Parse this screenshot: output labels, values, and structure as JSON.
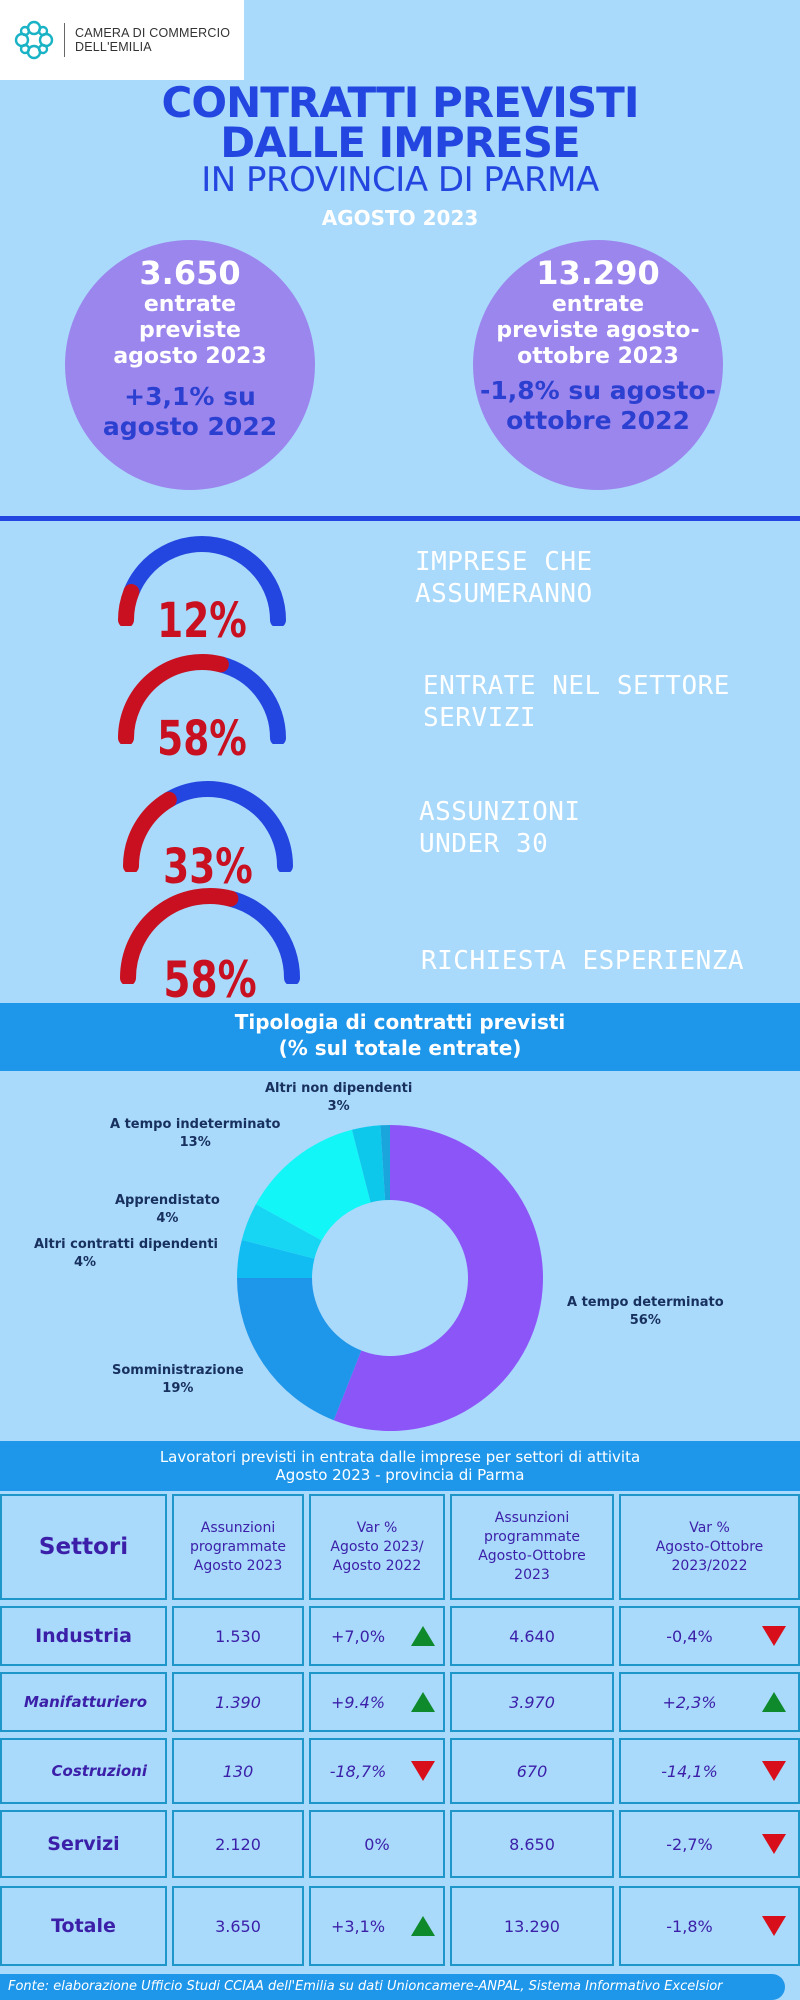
{
  "logo": {
    "line1": "CAMERA DI COMMERCIO",
    "line2": "DELL'EMILIA"
  },
  "header": {
    "title_line1": "CONTRATTI PREVISTI",
    "title_line2": "DALLE IMPRESE",
    "subtitle": "IN PROVINCIA DI PARMA",
    "period": "AGOSTO 2023"
  },
  "bubbles": [
    {
      "number": "3.650",
      "lines": [
        "entrate",
        "previste",
        "agosto 2023"
      ],
      "variation": [
        "+3,1% su",
        "agosto 2022"
      ]
    },
    {
      "number": "13.290",
      "lines": [
        "entrate",
        "previste agosto-",
        "ottobre 2023"
      ],
      "variation": [
        "-1,8% su agosto-",
        "ottobre 2022"
      ]
    }
  ],
  "indicators": [
    {
      "percent": 12,
      "label": "12%",
      "text": [
        "IMPRESE CHE",
        "ASSUMERANNO"
      ]
    },
    {
      "percent": 58,
      "label": "58%",
      "text": [
        "ENTRATE NEL SETTORE",
        "SERVIZI"
      ]
    },
    {
      "percent": 33,
      "label": "33%",
      "text": [
        "ASSUNZIONI",
        "UNDER 30"
      ]
    },
    {
      "percent": 58,
      "label": "58%",
      "text": [
        "RICHIESTA ESPERIENZA"
      ]
    }
  ],
  "colors": {
    "gauge_fill": "#c81020",
    "gauge_rest": "#2446e0"
  },
  "chart_data": {
    "type": "pie",
    "title": "Tipologia di contratti previsti",
    "subtitle": "(% sul totale entrate)",
    "donut": true,
    "slices": [
      {
        "label": "A tempo determinato",
        "value": 56,
        "value_label": "56%",
        "color": "#8c55f8"
      },
      {
        "label": "Somministrazione",
        "value": 19,
        "value_label": "19%",
        "color": "#1e96ea"
      },
      {
        "label": "Altri contratti dipendenti",
        "value": 4,
        "value_label": "4%",
        "color": "#10bcf2"
      },
      {
        "label": "Apprendistato",
        "value": 4,
        "value_label": "4%",
        "color": "#16d6f3"
      },
      {
        "label": "A tempo indeterminato",
        "value": 13,
        "value_label": "13%",
        "color": "#12f6f8"
      },
      {
        "label": "Altri non dipendenti",
        "value": 3,
        "value_label": "3%",
        "color": "#0ec8ec"
      },
      {
        "label": "",
        "value": 1,
        "value_label": "",
        "color": "#1aa6dc"
      }
    ]
  },
  "table": {
    "title_line1": "Lavoratori previsti in entrata dalle imprese per settori di attivita",
    "title_line2": "Agosto 2023 - provincia di Parma",
    "headers": [
      [
        "Settori"
      ],
      [
        "Assunzioni",
        "programmate",
        "Agosto 2023"
      ],
      [
        "Var %",
        "Agosto 2023/",
        "Agosto 2022"
      ],
      [
        "Assunzioni",
        "programmate",
        "Agosto-Ottobre",
        "2023"
      ],
      [
        "Var %",
        "Agosto-Ottobre",
        "2023/2022"
      ]
    ],
    "rows": [
      {
        "sector": "Industria",
        "italic": false,
        "aug": "1.530",
        "var1": "+7,0%",
        "dir1": "up",
        "augoct": "4.640",
        "var2": "-0,4%",
        "dir2": "down"
      },
      {
        "sector": "Manifatturiero",
        "italic": true,
        "aug": "1.390",
        "var1": "+9.4%",
        "dir1": "up",
        "augoct": "3.970",
        "var2": "+2,3%",
        "dir2": "up"
      },
      {
        "sector": "Costruzioni",
        "italic": true,
        "aug": "130",
        "var1": "-18,7%",
        "dir1": "down",
        "augoct": "670",
        "var2": "-14,1%",
        "dir2": "down"
      },
      {
        "sector": "Servizi",
        "italic": false,
        "aug": "2.120",
        "var1": "0%",
        "dir1": "",
        "augoct": "8.650",
        "var2": "-2,7%",
        "dir2": "down"
      },
      {
        "sector": "Totale",
        "italic": false,
        "aug": "3.650",
        "var1": "+3,1%",
        "dir1": "up",
        "augoct": "13.290",
        "var2": "-1,8%",
        "dir2": "down"
      }
    ]
  },
  "footer": "Fonte: elaborazione Ufficio Studi CCIAA dell'Emilia su dati Unioncamere-ANPAL, Sistema Informativo Excelsior"
}
